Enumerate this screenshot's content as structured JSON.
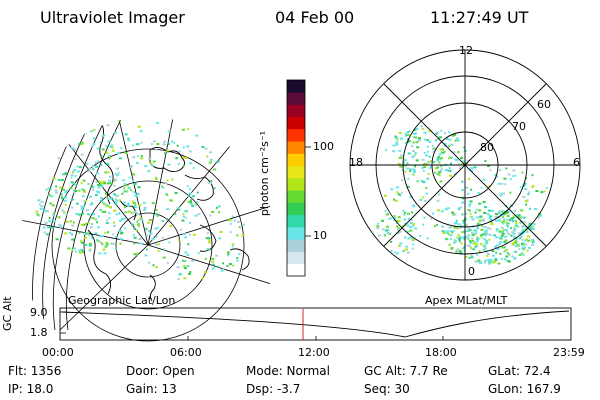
{
  "header": {
    "title": "Ultraviolet Imager",
    "date": "04 Feb 00",
    "time": "11:27:49 UT"
  },
  "colorbar": {
    "unit_label": "photon cm⁻²s⁻¹",
    "ticks": [
      "100",
      "10"
    ],
    "colors": [
      "#ffffff",
      "#d8e6ee",
      "#a9d2dc",
      "#66e6e6",
      "#33d9a8",
      "#33cc55",
      "#66d933",
      "#b3e619",
      "#e6e619",
      "#ffcc00",
      "#ff8800",
      "#ff3300",
      "#cc0000",
      "#990022",
      "#5c0a3a",
      "#1a0a2e"
    ]
  },
  "geo_panel": {
    "caption": "Geographic Lat/Lon"
  },
  "polar_panel": {
    "caption": "Apex MLat/MLT",
    "mlt_labels": {
      "top": "12",
      "left": "18",
      "right": "6",
      "bottom": "0"
    },
    "lat_labels": [
      "60",
      "70",
      "80"
    ]
  },
  "timeline": {
    "y_label": "GC Alt",
    "y_ticks": [
      "9.0",
      "1.8"
    ],
    "x_ticks": [
      "00:00",
      "06:00",
      "12:00",
      "18:00",
      "23:59"
    ],
    "marker_color": "#dd2222"
  },
  "info": {
    "flt": "Flt:  1356",
    "ip": "IP:  18.0",
    "door": "Door:  Open",
    "gain": "Gain:  13",
    "mode": "Mode:  Normal",
    "dsp": "Dsp:     -3.7",
    "gc_alt": "GC Alt:  7.7 Re",
    "seq": "Seq:  30",
    "glat": "GLat:   72.4",
    "glon": "GLon:  167.9"
  }
}
